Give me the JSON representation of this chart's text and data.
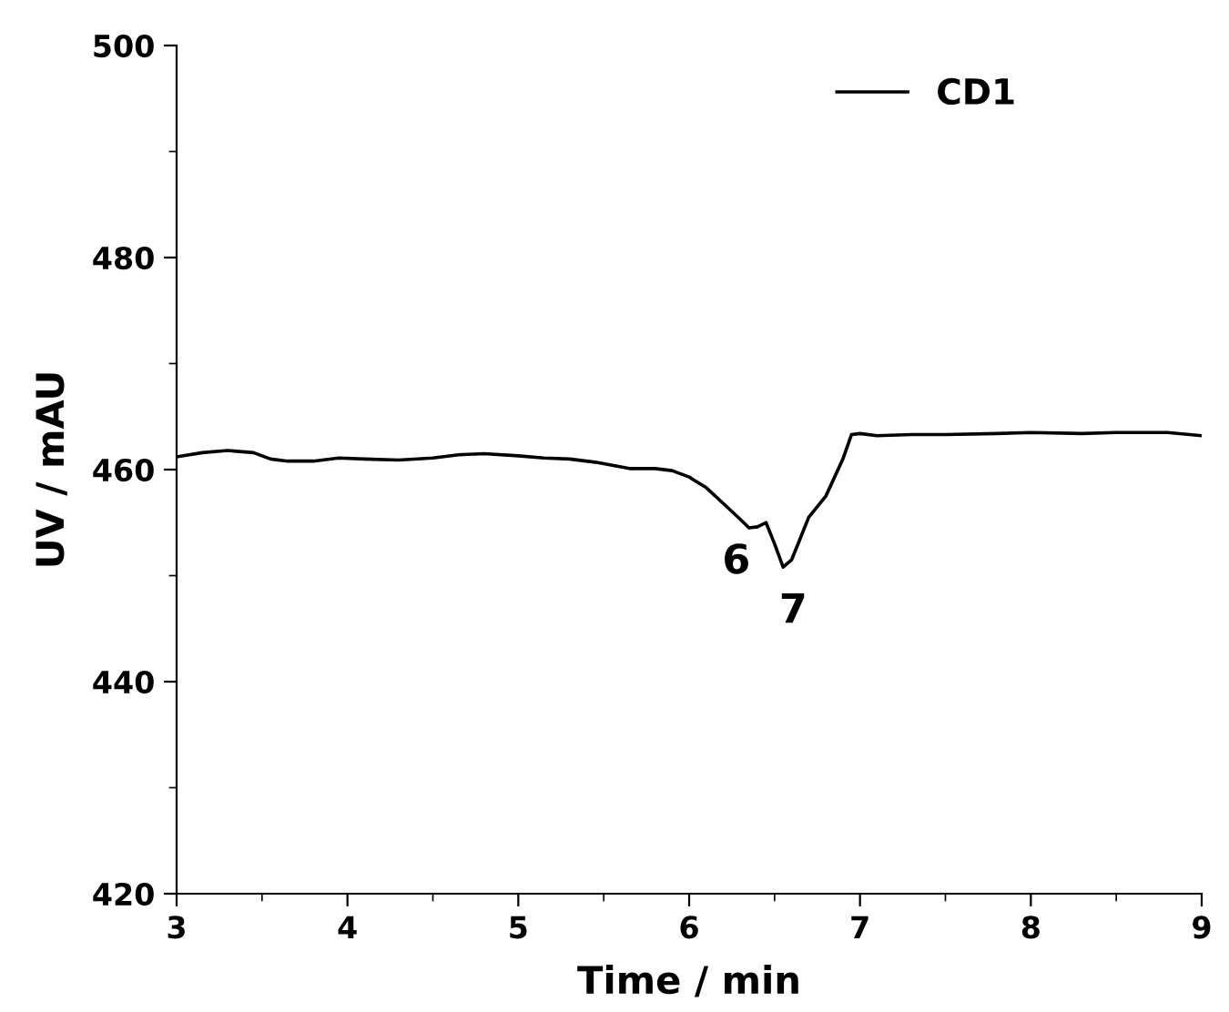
{
  "chart_data": {
    "type": "line",
    "xlabel": "Time / min",
    "ylabel": "UV / mAU",
    "xlim": [
      3,
      9
    ],
    "ylim": [
      420,
      500
    ],
    "xticks": [
      3,
      4,
      5,
      6,
      7,
      8,
      9
    ],
    "yticks": [
      420,
      440,
      460,
      480,
      500
    ],
    "legend": "top right",
    "grid": false,
    "series": [
      {
        "name": "CD1",
        "color": "#000000",
        "x": [
          3.0,
          3.15,
          3.3,
          3.45,
          3.55,
          3.65,
          3.8,
          3.95,
          4.1,
          4.3,
          4.5,
          4.65,
          4.8,
          5.0,
          5.15,
          5.3,
          5.45,
          5.55,
          5.65,
          5.8,
          5.9,
          6.0,
          6.1,
          6.2,
          6.3,
          6.35,
          6.4,
          6.45,
          6.5,
          6.55,
          6.6,
          6.65,
          6.7,
          6.8,
          6.9,
          6.95,
          7.0,
          7.1,
          7.3,
          7.5,
          7.8,
          8.0,
          8.3,
          8.5,
          8.8,
          9.0
        ],
        "values": [
          461.2,
          461.6,
          461.8,
          461.6,
          461.0,
          460.8,
          460.8,
          461.1,
          461.0,
          460.9,
          461.1,
          461.4,
          461.5,
          461.3,
          461.1,
          461.0,
          460.7,
          460.4,
          460.1,
          460.1,
          459.9,
          459.3,
          458.3,
          456.8,
          455.3,
          454.5,
          454.6,
          455.0,
          453.0,
          450.8,
          451.5,
          453.5,
          455.5,
          457.5,
          461.0,
          463.3,
          463.4,
          463.2,
          463.3,
          463.3,
          463.4,
          463.5,
          463.4,
          463.5,
          463.5,
          463.2
        ]
      }
    ],
    "annotations": [
      {
        "text": "6",
        "x": 6.35,
        "y": 454.5
      },
      {
        "text": "7",
        "x": 6.55,
        "y": 450.8
      }
    ]
  }
}
